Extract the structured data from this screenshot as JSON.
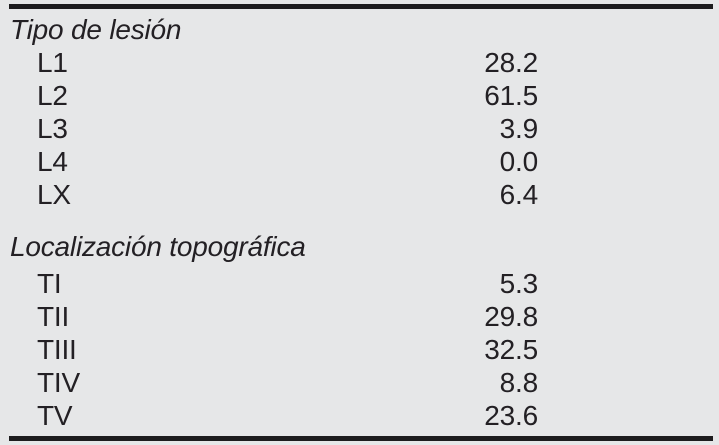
{
  "colors": {
    "background": "#e6e7e8",
    "text": "#232024",
    "rule": "#1d1c1e"
  },
  "table": {
    "sections": [
      {
        "header": "Tipo de lesión",
        "rows": [
          {
            "label": "L1",
            "value": "28.2"
          },
          {
            "label": "L2",
            "value": "61.5"
          },
          {
            "label": "L3",
            "value": "3.9"
          },
          {
            "label": "L4",
            "value": "0.0"
          },
          {
            "label": "LX",
            "value": "6.4"
          }
        ]
      },
      {
        "header": "Localización topográfica",
        "rows": [
          {
            "label": "TI",
            "value": "5.3"
          },
          {
            "label": "TII",
            "value": "29.8"
          },
          {
            "label": "TIII",
            "value": "32.5"
          },
          {
            "label": "TIV",
            "value": "8.8"
          },
          {
            "label": "TV",
            "value": "23.6"
          }
        ]
      }
    ]
  }
}
